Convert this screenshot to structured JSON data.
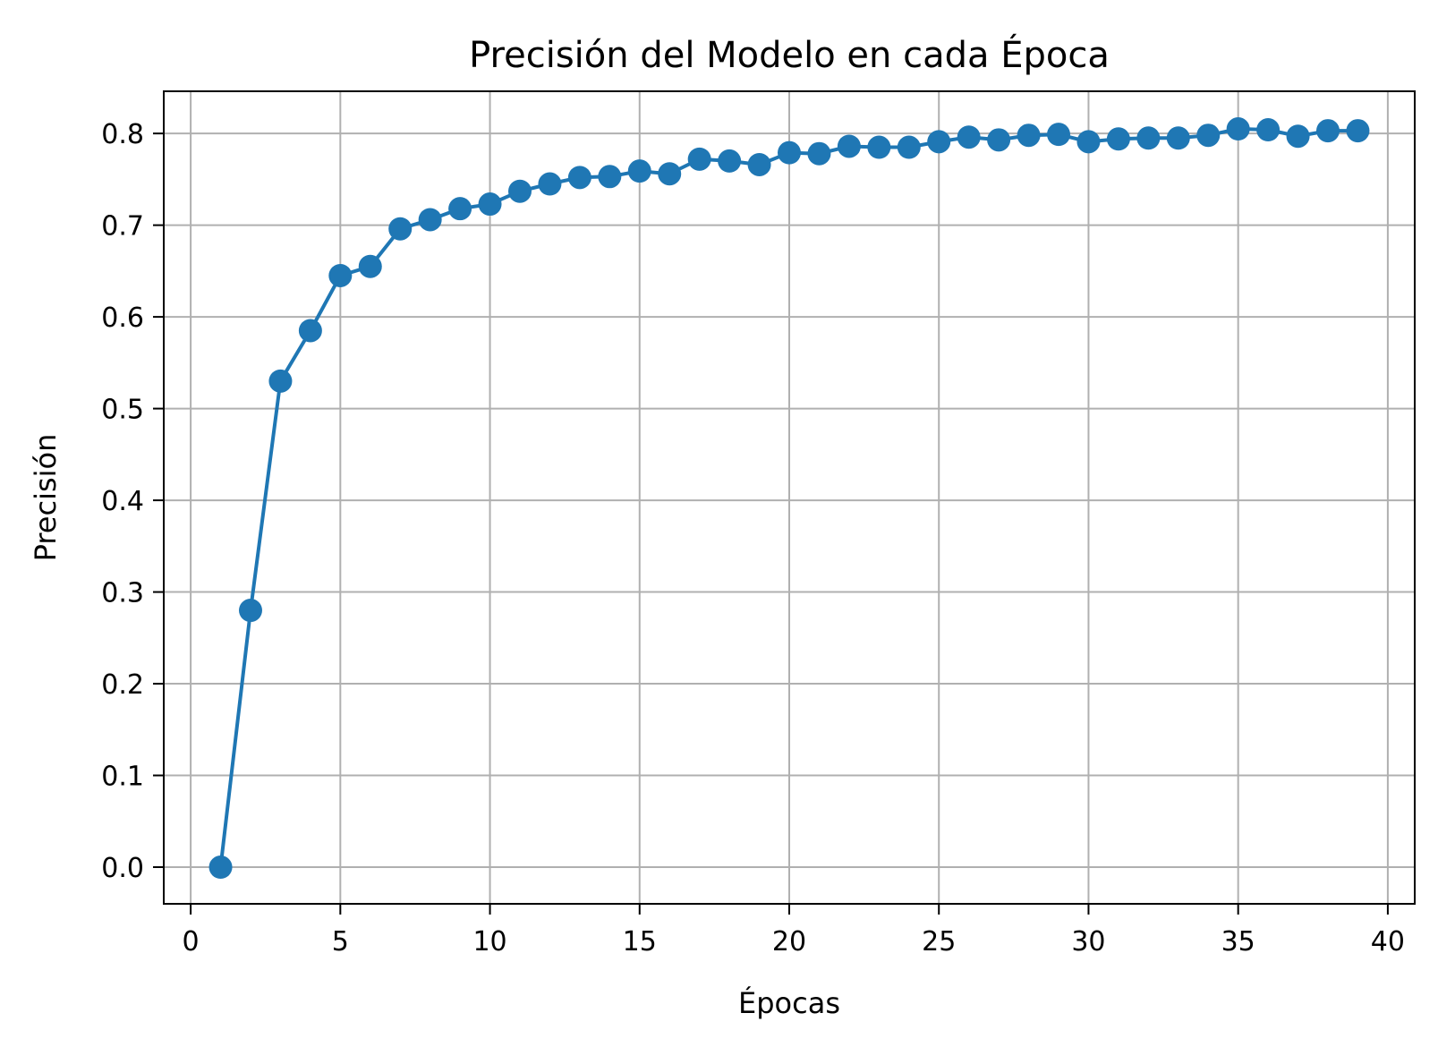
{
  "chart_data": {
    "type": "line",
    "title": "Precisión del Modelo en cada Época",
    "xlabel": "Épocas",
    "ylabel": "Precisión",
    "xlim": [
      -0.9,
      40.9
    ],
    "ylim": [
      -0.04,
      0.846
    ],
    "xticks": [
      0,
      5,
      10,
      15,
      20,
      25,
      30,
      35,
      40
    ],
    "xtick_labels": [
      "0",
      "5",
      "10",
      "15",
      "20",
      "25",
      "30",
      "35",
      "40"
    ],
    "yticks": [
      0.0,
      0.1,
      0.2,
      0.3,
      0.4,
      0.5,
      0.6,
      0.7,
      0.8
    ],
    "ytick_labels": [
      "0.0",
      "0.1",
      "0.2",
      "0.3",
      "0.4",
      "0.5",
      "0.6",
      "0.7",
      "0.8"
    ],
    "grid": true,
    "marker": "circle",
    "color": "#1f77b4",
    "x": [
      1,
      2,
      3,
      4,
      5,
      6,
      7,
      8,
      9,
      10,
      11,
      12,
      13,
      14,
      15,
      16,
      17,
      18,
      19,
      20,
      21,
      22,
      23,
      24,
      25,
      26,
      27,
      28,
      29,
      30,
      31,
      32,
      33,
      34,
      35,
      36,
      37,
      38,
      39
    ],
    "y": [
      0.0,
      0.28,
      0.53,
      0.585,
      0.645,
      0.655,
      0.696,
      0.706,
      0.718,
      0.723,
      0.737,
      0.745,
      0.752,
      0.753,
      0.759,
      0.756,
      0.772,
      0.77,
      0.766,
      0.779,
      0.778,
      0.786,
      0.785,
      0.785,
      0.791,
      0.796,
      0.793,
      0.798,
      0.799,
      0.791,
      0.794,
      0.795,
      0.795,
      0.798,
      0.805,
      0.804,
      0.797,
      0.803,
      0.803
    ]
  }
}
